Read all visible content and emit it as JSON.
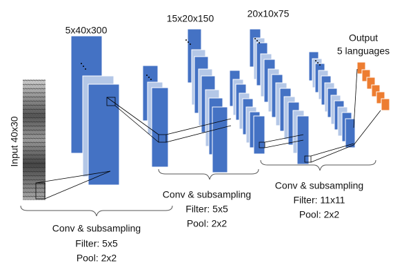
{
  "input": {
    "label": "Input 40x30"
  },
  "layers": [
    {
      "label": "5x40x300"
    },
    {
      "label": "15x20x150"
    },
    {
      "label": "20x10x75"
    }
  ],
  "output": {
    "title": "Output",
    "subtitle": "5 languages"
  },
  "stages": [
    {
      "name": "Conv & subsampling",
      "filter": "Filter: 5x5",
      "pool": "Pool: 2x2"
    },
    {
      "name": "Conv & subsampling",
      "filter": "Filter: 5x5",
      "pool": "Pool: 2x2"
    },
    {
      "name": "Conv & subsampling",
      "filter": "Filter: 11x11",
      "pool": "Pool: 2x2"
    }
  ]
}
